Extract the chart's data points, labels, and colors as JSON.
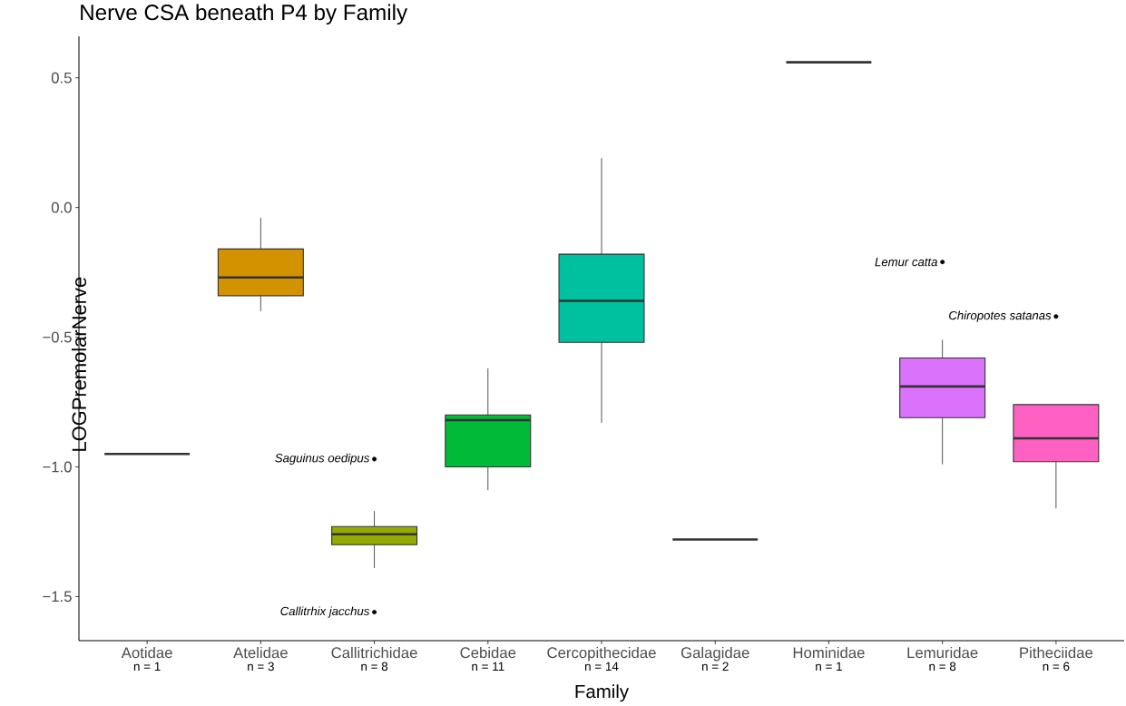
{
  "chart_data": {
    "type": "box",
    "title": "Nerve CSA beneath P4 by Family",
    "xlabel": "Family",
    "ylabel": "LOGPremolarNerve",
    "categories": [
      "Aotidae",
      "Atelidae",
      "Callitrichidae",
      "Cebidae",
      "Cercopithecidae",
      "Galagidae",
      "Hominidae",
      "Lemuridae",
      "Pitheciidae"
    ],
    "colors": [
      null,
      "#d39200",
      "#93aa00",
      "#00ba38",
      "#00c19f",
      null,
      null,
      "#db72fb",
      "#ff61c3"
    ],
    "boxes": [
      {
        "low": -0.95,
        "q1": -0.95,
        "median": -0.95,
        "q3": -0.95,
        "high": -0.95
      },
      {
        "low": -0.4,
        "q1": -0.34,
        "median": -0.27,
        "q3": -0.16,
        "high": -0.04
      },
      {
        "low": -1.39,
        "q1": -1.3,
        "median": -1.26,
        "q3": -1.23,
        "high": -1.17,
        "outliers": [
          -0.97,
          -1.56
        ]
      },
      {
        "low": -1.09,
        "q1": -1.0,
        "median": -0.82,
        "q3": -0.8,
        "high": -0.62
      },
      {
        "low": -0.83,
        "q1": -0.52,
        "median": -0.36,
        "q3": -0.18,
        "high": 0.19
      },
      {
        "low": -1.28,
        "q1": -1.28,
        "median": -1.28,
        "q3": -1.28,
        "high": -1.28
      },
      {
        "low": 0.56,
        "q1": 0.56,
        "median": 0.56,
        "q3": 0.56,
        "high": 0.56
      },
      {
        "low": -0.99,
        "q1": -0.81,
        "median": -0.69,
        "q3": -0.58,
        "high": -0.51,
        "outliers": [
          -0.21
        ]
      },
      {
        "low": -1.16,
        "q1": -0.98,
        "median": -0.89,
        "q3": -0.76,
        "high": -0.76,
        "outliers": [
          -0.42
        ]
      }
    ],
    "ylim": [
      -1.67,
      0.66
    ],
    "yticks": [
      {
        "value": -1.5,
        "label": "−1.5"
      },
      {
        "value": -1.0,
        "label": "−1.0"
      },
      {
        "value": -0.5,
        "label": "−0.5"
      },
      {
        "value": 0.0,
        "label": "0.0"
      },
      {
        "value": 0.5,
        "label": "0.5"
      }
    ],
    "grid": false,
    "annotations": [
      "Saguinus oedipus",
      "Callitrhix jacchus",
      "Lemur catta",
      "Chiropotes satanas",
      "n = 1",
      "n = 3",
      "n = 8",
      "n = 11",
      "n = 14",
      "n = 2",
      "n = 1",
      "n = 8",
      "n = 6"
    ]
  }
}
